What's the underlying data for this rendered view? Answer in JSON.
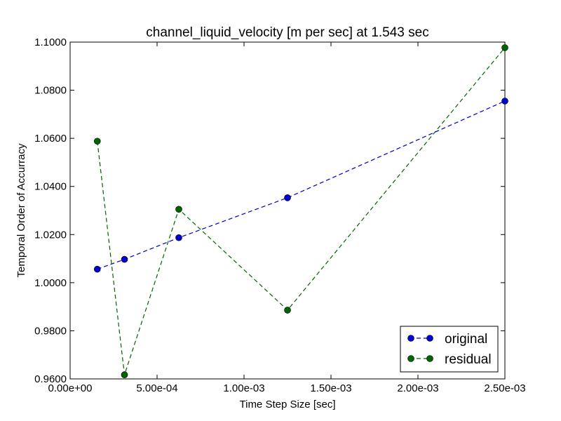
{
  "chart_data": {
    "type": "line",
    "title": "channel_liquid_velocity [m per sec] at 1.543 sec",
    "xlabel": "Time Step Size [sec]",
    "ylabel": "Temporal Order of Accurracy",
    "xlim": [
      0.0,
      0.0025
    ],
    "ylim": [
      0.96,
      1.1
    ],
    "x_ticks": [
      0.0,
      0.0005,
      0.001,
      0.0015,
      0.002,
      0.0025
    ],
    "x_tick_labels": [
      "0.00e+00",
      "5.00e-04",
      "1.00e-03",
      "1.50e-03",
      "2.00e-03",
      "2.50e-03"
    ],
    "y_ticks": [
      0.96,
      0.98,
      1.0,
      1.02,
      1.04,
      1.06,
      1.08,
      1.1
    ],
    "y_tick_labels": [
      "0.9600",
      "0.9800",
      "1.0000",
      "1.0200",
      "1.0400",
      "1.0600",
      "1.0800",
      "1.1000"
    ],
    "grid": false,
    "legend_position": "bottom-right",
    "series": [
      {
        "name": "original",
        "color": "#0000cc",
        "line_style": "dashed",
        "marker": "circle",
        "x": [
          0.00015625,
          0.0003125,
          0.000625,
          0.00125,
          0.0025
        ],
        "y": [
          1.0056,
          1.0097,
          1.0187,
          1.0353,
          1.0755
        ]
      },
      {
        "name": "residual",
        "color": "#006400",
        "line_style": "dashed",
        "marker": "circle",
        "x": [
          0.00015625,
          0.0003125,
          0.000625,
          0.00125,
          0.0025
        ],
        "y": [
          1.0588,
          0.9617,
          1.0305,
          0.9886,
          1.0977
        ]
      }
    ]
  }
}
